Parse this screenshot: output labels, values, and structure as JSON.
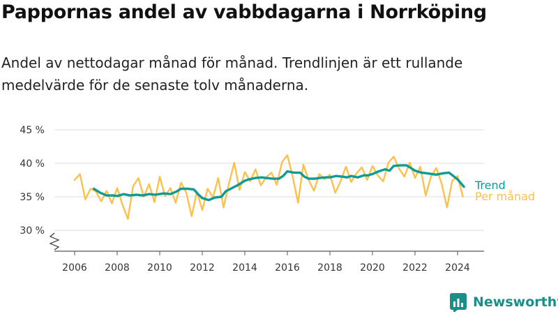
{
  "title": "Pappornas andel av vabbdagarna i Norrköping",
  "subtitle": "Andel av nettodagar månad för månad. Trendlinjen är ett rullande medelvärde för de senaste tolv månaderna.",
  "brand": {
    "name": "Newsworthy",
    "color": "#1a8e87"
  },
  "colors": {
    "monthly": "#fcc04b",
    "trend": "#0e9b93",
    "grid": "#dddddd",
    "axis": "#555555"
  },
  "chart_data": {
    "type": "line",
    "ylim": [
      27,
      45
    ],
    "y_ticks": [
      30,
      35,
      40,
      45
    ],
    "y_tick_labels": [
      "30 %",
      "35 %",
      "40 %",
      "45 %"
    ],
    "x_ticks": [
      "2006",
      "2008",
      "2010",
      "2012",
      "2014",
      "2016",
      "2018",
      "2020",
      "2022",
      "2024"
    ],
    "axis_break": true,
    "grid": true,
    "series": [
      {
        "name": "Per månad",
        "key": "monthly",
        "x": [
          2006.0,
          2006.25,
          2006.5,
          2006.75,
          2007.0,
          2007.25,
          2007.5,
          2007.75,
          2008.0,
          2008.25,
          2008.5,
          2008.75,
          2009.0,
          2009.25,
          2009.5,
          2009.75,
          2010.0,
          2010.25,
          2010.5,
          2010.75,
          2011.0,
          2011.25,
          2011.5,
          2011.75,
          2012.0,
          2012.25,
          2012.5,
          2012.75,
          2013.0,
          2013.25,
          2013.5,
          2013.75,
          2014.0,
          2014.25,
          2014.5,
          2014.75,
          2015.0,
          2015.25,
          2015.5,
          2015.75,
          2016.0,
          2016.25,
          2016.5,
          2016.75,
          2017.0,
          2017.25,
          2017.5,
          2017.75,
          2018.0,
          2018.25,
          2018.5,
          2018.75,
          2019.0,
          2019.25,
          2019.5,
          2019.75,
          2020.0,
          2020.25,
          2020.5,
          2020.75,
          2021.0,
          2021.25,
          2021.5,
          2021.75,
          2022.0,
          2022.25,
          2022.5,
          2022.75,
          2023.0,
          2023.25,
          2023.5,
          2023.75,
          2024.0,
          2024.25
        ],
        "values": [
          37.5,
          38.4,
          34.6,
          36.2,
          35.8,
          34.3,
          35.9,
          34.0,
          36.3,
          33.8,
          31.7,
          36.6,
          37.8,
          35.0,
          36.9,
          34.2,
          38.0,
          35.1,
          36.3,
          34.1,
          37.1,
          35.6,
          32.1,
          35.8,
          33.0,
          36.2,
          34.9,
          37.8,
          33.4,
          36.9,
          40.1,
          36.0,
          38.7,
          37.3,
          39.1,
          36.7,
          37.9,
          38.6,
          36.8,
          40.2,
          41.2,
          38.0,
          34.1,
          39.8,
          37.5,
          35.9,
          38.4,
          37.6,
          38.3,
          35.6,
          37.3,
          39.5,
          37.2,
          38.5,
          39.4,
          37.5,
          39.6,
          38.2,
          37.3,
          40.1,
          41.0,
          39.2,
          38.0,
          40.1,
          37.8,
          39.5,
          35.2,
          38.0,
          39.3,
          37.0,
          33.4,
          37.4,
          38.1,
          35.0
        ]
      },
      {
        "name": "Trend",
        "key": "trend",
        "x": [
          2006.9,
          2007.2,
          2007.5,
          2007.8,
          2008.0,
          2008.3,
          2008.6,
          2008.9,
          2009.2,
          2009.5,
          2009.8,
          2010.2,
          2010.5,
          2010.8,
          2011.0,
          2011.3,
          2011.6,
          2011.8,
          2012.0,
          2012.3,
          2012.6,
          2012.9,
          2013.1,
          2013.4,
          2013.7,
          2014.0,
          2014.2,
          2014.5,
          2014.8,
          2015.0,
          2015.3,
          2015.6,
          2015.8,
          2016.0,
          2016.3,
          2016.6,
          2016.8,
          2017.0,
          2017.3,
          2017.5,
          2017.8,
          2018.0,
          2018.3,
          2018.6,
          2018.8,
          2019.0,
          2019.3,
          2019.6,
          2019.8,
          2020.0,
          2020.3,
          2020.6,
          2020.8,
          2021.0,
          2021.3,
          2021.6,
          2021.8,
          2022.0,
          2022.3,
          2022.6,
          2022.8,
          2023.0,
          2023.3,
          2023.6,
          2023.8,
          2024.0,
          2024.3
        ],
        "values": [
          36.2,
          35.6,
          35.2,
          35.2,
          35.1,
          35.4,
          35.2,
          35.3,
          35.2,
          35.4,
          35.3,
          35.5,
          35.4,
          35.8,
          36.2,
          36.2,
          36.1,
          35.4,
          34.8,
          34.5,
          34.9,
          35.0,
          35.8,
          36.3,
          36.8,
          37.4,
          37.6,
          37.8,
          37.9,
          37.8,
          37.7,
          37.7,
          38.1,
          38.8,
          38.6,
          38.6,
          38.0,
          37.7,
          37.7,
          37.8,
          37.9,
          37.9,
          38.1,
          38.0,
          37.9,
          38.1,
          37.9,
          38.2,
          38.2,
          38.4,
          38.8,
          39.1,
          38.9,
          39.6,
          39.7,
          39.7,
          39.3,
          38.9,
          38.6,
          38.5,
          38.4,
          38.3,
          38.5,
          38.6,
          38.1,
          37.6,
          36.5
        ]
      }
    ]
  }
}
